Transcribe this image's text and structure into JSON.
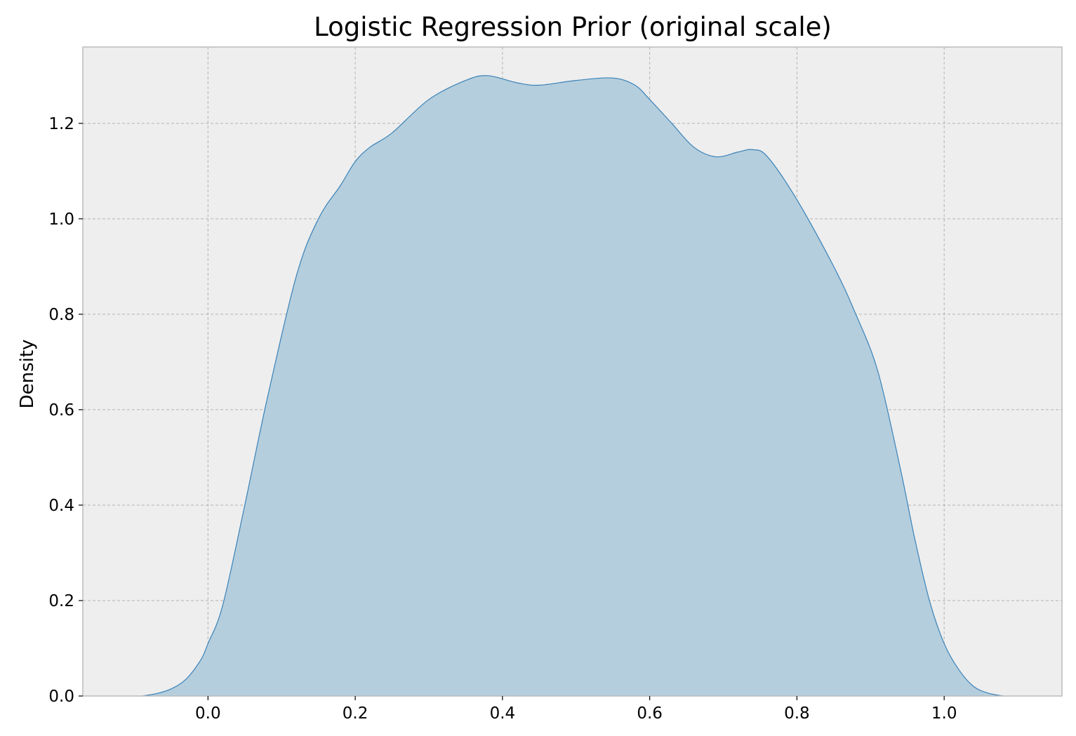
{
  "chart_data": {
    "type": "area",
    "title": "Logistic Regression Prior (original scale)",
    "xlabel": "",
    "ylabel": "Density",
    "xlim": [
      -0.17,
      1.16
    ],
    "ylim": [
      0.0,
      1.36
    ],
    "x_ticks": [
      0.0,
      0.2,
      0.4,
      0.6,
      0.8,
      1.0
    ],
    "x_tick_labels": [
      "0.0",
      "0.2",
      "0.4",
      "0.6",
      "0.8",
      "1.0"
    ],
    "y_ticks": [
      0.0,
      0.2,
      0.4,
      0.6,
      0.8,
      1.0,
      1.2
    ],
    "y_tick_labels": [
      "0.0",
      "0.2",
      "0.4",
      "0.6",
      "0.8",
      "1.0",
      "1.2"
    ],
    "grid": true,
    "legend": false,
    "colors": {
      "line": "#3b82b8",
      "fill": "#b4cedd",
      "plot_background": "#eeeeee",
      "grid": "#b3b3b3",
      "frame": "#bcbcbc"
    },
    "series": [
      {
        "x": [
          -0.09,
          -0.07,
          -0.05,
          -0.03,
          -0.01,
          0.0,
          0.02,
          0.05,
          0.08,
          0.12,
          0.15,
          0.18,
          0.2,
          0.22,
          0.25,
          0.3,
          0.35,
          0.38,
          0.42,
          0.45,
          0.5,
          0.55,
          0.58,
          0.6,
          0.63,
          0.66,
          0.69,
          0.72,
          0.74,
          0.76,
          0.8,
          0.85,
          0.88,
          0.91,
          0.94,
          0.96,
          0.98,
          1.0,
          1.02,
          1.04,
          1.06,
          1.08
        ],
        "y": [
          0.0,
          0.005,
          0.015,
          0.035,
          0.075,
          0.11,
          0.19,
          0.4,
          0.62,
          0.88,
          1.0,
          1.07,
          1.12,
          1.15,
          1.18,
          1.25,
          1.29,
          1.3,
          1.285,
          1.28,
          1.29,
          1.295,
          1.28,
          1.25,
          1.2,
          1.15,
          1.13,
          1.14,
          1.145,
          1.13,
          1.04,
          0.9,
          0.8,
          0.68,
          0.48,
          0.33,
          0.2,
          0.11,
          0.055,
          0.02,
          0.006,
          0.0
        ]
      }
    ]
  }
}
